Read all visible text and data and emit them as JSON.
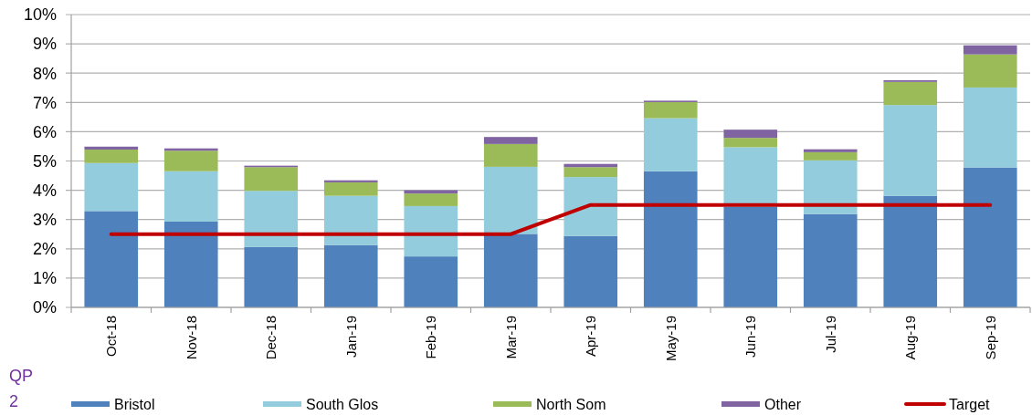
{
  "chart_data": {
    "type": "bar",
    "stacked": true,
    "categories": [
      "Oct-18",
      "Nov-18",
      "Dec-18",
      "Jan-19",
      "Feb-19",
      "Mar-19",
      "Apr-19",
      "May-19",
      "Jun-19",
      "Jul-19",
      "Aug-19",
      "Sep-19"
    ],
    "series": [
      {
        "name": "Bristol",
        "color": "#4f81bd",
        "values": [
          3.29,
          2.93,
          2.06,
          2.13,
          1.74,
          2.51,
          2.44,
          4.65,
          3.43,
          3.19,
          3.81,
          4.78
        ]
      },
      {
        "name": "South Glos",
        "color": "#93cddd",
        "values": [
          1.64,
          1.72,
          1.92,
          1.68,
          1.72,
          2.29,
          2.01,
          1.81,
          2.04,
          1.83,
          3.1,
          2.73
        ]
      },
      {
        "name": "North Som",
        "color": "#9bbb59",
        "values": [
          0.46,
          0.7,
          0.81,
          0.46,
          0.43,
          0.78,
          0.34,
          0.55,
          0.32,
          0.28,
          0.79,
          1.13
        ]
      },
      {
        "name": "Other",
        "color": "#8064a2",
        "values": [
          0.1,
          0.08,
          0.05,
          0.07,
          0.11,
          0.24,
          0.11,
          0.05,
          0.28,
          0.1,
          0.06,
          0.31
        ]
      },
      {
        "name": "Target",
        "type": "line",
        "color": "#c00000",
        "values": [
          2.5,
          2.5,
          2.5,
          2.5,
          2.5,
          2.5,
          3.5,
          3.5,
          3.5,
          3.5,
          3.5,
          3.5
        ]
      }
    ],
    "ylim": [
      0,
      10
    ],
    "yticks": [
      {
        "value": 0,
        "label": "0%"
      },
      {
        "value": 1,
        "label": "1%"
      },
      {
        "value": 2,
        "label": "2%"
      },
      {
        "value": 3,
        "label": "3%"
      },
      {
        "value": 4,
        "label": "4%"
      },
      {
        "value": 5,
        "label": "5%"
      },
      {
        "value": 6,
        "label": "6%"
      },
      {
        "value": 7,
        "label": "7%"
      },
      {
        "value": 8,
        "label": "8%"
      },
      {
        "value": 9,
        "label": "9%"
      },
      {
        "value": 10,
        "label": "10%"
      }
    ],
    "grid": "y",
    "legend": "bottom",
    "annotations": [
      "QP 2"
    ]
  }
}
